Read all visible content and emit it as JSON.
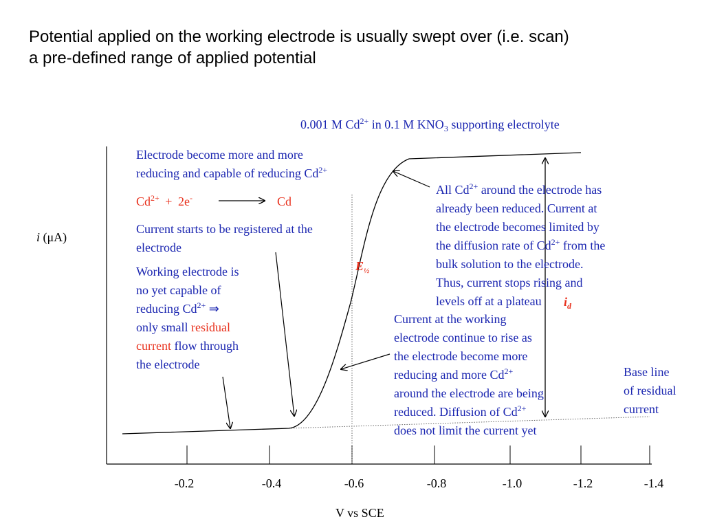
{
  "title": {
    "line1": "Potential applied on the working electrode is usually swept over (i.e. scan)",
    "line2": "a pre-defined range of applied potential"
  },
  "subtitle": {
    "pre": "0.001 M Cd",
    "sup": "2+",
    "mid": " in 0.1 M KNO",
    "sub": "3",
    "post": " supporting electrolyte"
  },
  "axes": {
    "ylabel_var": "i",
    "ylabel_unit": " (μA)",
    "xlabel": "V vs SCE",
    "ticks": [
      "-0.2",
      "-0.4",
      "-0.6",
      "-0.8",
      "-1.0",
      "-1.2",
      "-1.4"
    ]
  },
  "annotations": {
    "reducing": {
      "line1": "Electrode become more and more",
      "line2": "reducing and capable of reducing Cd",
      "sup": "2+"
    },
    "reaction": {
      "reactant": "Cd",
      "sup": "2+",
      "plus": "+",
      "electrons": "2e",
      "esup": "-",
      "product": "Cd"
    },
    "starts": {
      "line1": "Current starts to be registered at the",
      "line2": "electrode"
    },
    "working": {
      "l1": "Working electrode is",
      "l2": "no yet capable of",
      "l3": "reducing Cd",
      "l3sup": "2+",
      "l3arrow": "⇒",
      "l4pre": "only small ",
      "l4red": "residual",
      "l5red": "current",
      "l5post": " flow through",
      "l6": "the electrode"
    },
    "half_wave": {
      "main": "E",
      "sub": "½"
    },
    "limited": {
      "l1pre": "All Cd",
      "l1sup": "2+",
      "l1post": " around the electrode has",
      "l2": "already been reduced. Current at",
      "l3": "the electrode becomes limited by",
      "l4pre": "the diffusion rate of Cd",
      "l4sup": "2+",
      "l4post": " from the",
      "l5": "bulk solution to the electrode.",
      "l6": "Thus, current stops rising and",
      "l7": "levels off at a plateau"
    },
    "id_label": {
      "main": "i",
      "sub": "d"
    },
    "rise": {
      "l1": "Current at the working",
      "l2": "electrode continue to rise as",
      "l3": "the electrode become more",
      "l4pre": "reducing and more Cd",
      "l4sup": "2+",
      "l5": "around the electrode are being",
      "l6pre": "reduced. Diffusion of Cd",
      "l6sup": "2+",
      "l7": "does not limit the current yet"
    },
    "baseline": {
      "l1": "Base line",
      "l2": "of residual",
      "l3": "current"
    }
  },
  "colors": {
    "text_blue": "#1a25b0",
    "text_red": "#e8301c",
    "axis": "#000000"
  }
}
